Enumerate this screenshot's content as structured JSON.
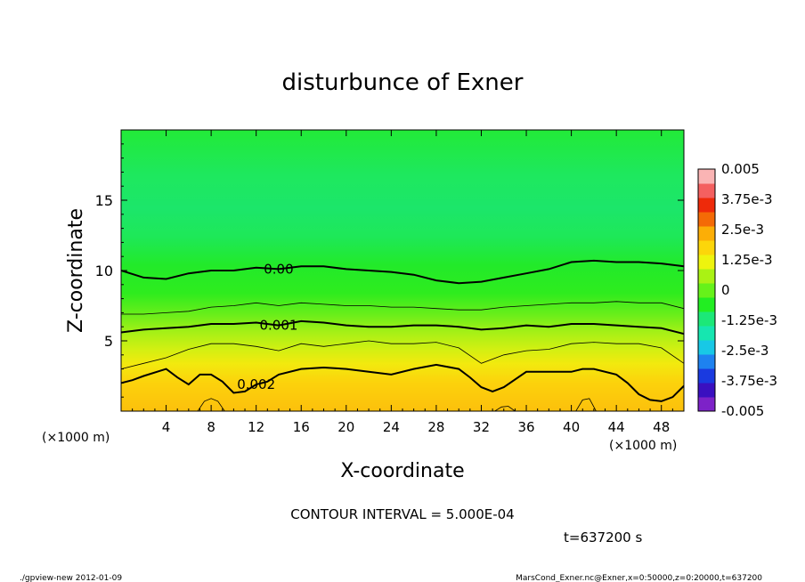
{
  "chart_data": {
    "type": "heatmap",
    "title": "disturbunce of Exner",
    "xlabel": "X-coordinate",
    "ylabel": "Z-coordinate",
    "x_unit": "(×1000 m)",
    "y_unit": "(×1000 m)",
    "xlim": [
      0,
      50
    ],
    "ylim": [
      0,
      20
    ],
    "x_ticks": [
      "4",
      "8",
      "12",
      "16",
      "20",
      "24",
      "28",
      "32",
      "36",
      "40",
      "44",
      "48"
    ],
    "y_ticks": [
      "5",
      "10",
      "15"
    ],
    "colorbar": {
      "labels": [
        "0.005",
        "3.75e-3",
        "2.5e-3",
        "1.25e-3",
        "0",
        "-1.25e-3",
        "-2.5e-3",
        "-3.75e-3",
        "-0.005"
      ],
      "range": [
        -0.005,
        0.005
      ],
      "colors": [
        "#7d22c8",
        "#3a10c0",
        "#1a3ae0",
        "#1e82f0",
        "#18c8e6",
        "#16e6b0",
        "#1ce878",
        "#22ee22",
        "#66f21a",
        "#aaf214",
        "#eef40e",
        "#fcd60a",
        "#fcae06",
        "#f46a06",
        "#ee2a0a",
        "#f46060",
        "#fab4b4"
      ]
    },
    "contours": [
      {
        "level": 0.0,
        "label": "0.00",
        "x": [
          0,
          2,
          4,
          6,
          8,
          10,
          12,
          14,
          16,
          18,
          20,
          22,
          24,
          26,
          28,
          30,
          32,
          34,
          36,
          38,
          40,
          42,
          44,
          46,
          48,
          50
        ],
        "y": [
          10.0,
          9.5,
          9.4,
          9.8,
          10.0,
          10.0,
          10.2,
          10.1,
          10.3,
          10.3,
          10.1,
          10.0,
          9.9,
          9.7,
          9.3,
          9.1,
          9.2,
          9.5,
          9.8,
          10.1,
          10.6,
          10.7,
          10.6,
          10.6,
          10.5,
          10.3
        ]
      },
      {
        "level": 0.0005,
        "label": "",
        "x": [
          0,
          2,
          4,
          6,
          8,
          10,
          12,
          14,
          16,
          18,
          20,
          22,
          24,
          26,
          28,
          30,
          32,
          34,
          36,
          38,
          40,
          42,
          44,
          46,
          48,
          50
        ],
        "y": [
          6.9,
          6.9,
          7.0,
          7.1,
          7.4,
          7.5,
          7.7,
          7.5,
          7.7,
          7.6,
          7.5,
          7.5,
          7.4,
          7.4,
          7.3,
          7.2,
          7.2,
          7.4,
          7.5,
          7.6,
          7.7,
          7.7,
          7.8,
          7.7,
          7.7,
          7.3
        ]
      },
      {
        "level": 0.001,
        "label": "0.001",
        "x": [
          0,
          2,
          4,
          6,
          8,
          10,
          12,
          14,
          16,
          18,
          20,
          22,
          24,
          26,
          28,
          30,
          32,
          34,
          36,
          38,
          40,
          42,
          44,
          46,
          48,
          50
        ],
        "y": [
          5.6,
          5.8,
          5.9,
          6.0,
          6.2,
          6.2,
          6.3,
          6.1,
          6.4,
          6.3,
          6.1,
          6.0,
          6.0,
          6.1,
          6.1,
          6.0,
          5.8,
          5.9,
          6.1,
          6.0,
          6.2,
          6.2,
          6.1,
          6.0,
          5.9,
          5.5
        ]
      },
      {
        "level": 0.0015,
        "label": "",
        "x": [
          0,
          2,
          4,
          6,
          8,
          10,
          12,
          14,
          16,
          18,
          20,
          22,
          24,
          26,
          28,
          30,
          32,
          34,
          36,
          38,
          40,
          42,
          44,
          46,
          48,
          50
        ],
        "y": [
          3.0,
          3.4,
          3.8,
          4.4,
          4.8,
          4.8,
          4.6,
          4.3,
          4.8,
          4.6,
          4.8,
          5.0,
          4.8,
          4.8,
          4.9,
          4.5,
          3.4,
          4.0,
          4.3,
          4.4,
          4.8,
          4.9,
          4.8,
          4.8,
          4.5,
          3.4
        ]
      },
      {
        "level": 0.002,
        "label": "0.002",
        "x": [
          0,
          1,
          2,
          4,
          5,
          6,
          7,
          8,
          9,
          10,
          11,
          12,
          13,
          14,
          16,
          18,
          20,
          22,
          24,
          26,
          28,
          30,
          31,
          32,
          33,
          34,
          36,
          38,
          40,
          41,
          42,
          44,
          45,
          46,
          47,
          48,
          49,
          50
        ],
        "y": [
          2.0,
          2.2,
          2.5,
          3.0,
          2.4,
          1.9,
          2.6,
          2.6,
          2.1,
          1.3,
          1.4,
          1.9,
          2.1,
          2.6,
          3.0,
          3.1,
          3.0,
          2.8,
          2.6,
          3.0,
          3.3,
          3.0,
          2.4,
          1.7,
          1.4,
          1.7,
          2.8,
          2.8,
          2.8,
          3.0,
          3.0,
          2.6,
          2.0,
          1.2,
          0.8,
          0.7,
          1.0,
          1.8
        ]
      },
      {
        "level": 0.0045,
        "label": "",
        "x": [
          6.8,
          7.4,
          8.0,
          8.6,
          9.2
        ],
        "y": [
          0,
          0.7,
          0.9,
          0.7,
          0
        ]
      },
      {
        "level": 0.0045,
        "label": "",
        "x": [
          33.2,
          33.8,
          34.4,
          35.0
        ],
        "y": [
          0,
          0.3,
          0.35,
          0
        ]
      },
      {
        "level": 0.0045,
        "label": "",
        "x": [
          40.4,
          41.0,
          41.6,
          42.2
        ],
        "y": [
          0,
          0.8,
          0.9,
          0
        ]
      }
    ]
  },
  "annotations": {
    "x_unit_left": "(×1000 m)",
    "x_unit_right": "(×1000 m)",
    "contour_interval": "CONTOUR INTERVAL = 5.000E-04",
    "time": "t=637200 s",
    "footer_left": "./gpview-new   2012-01-09",
    "footer_right": "MarsCond_Exner.nc@Exner,x=0:50000,z=0:20000,t=637200"
  }
}
